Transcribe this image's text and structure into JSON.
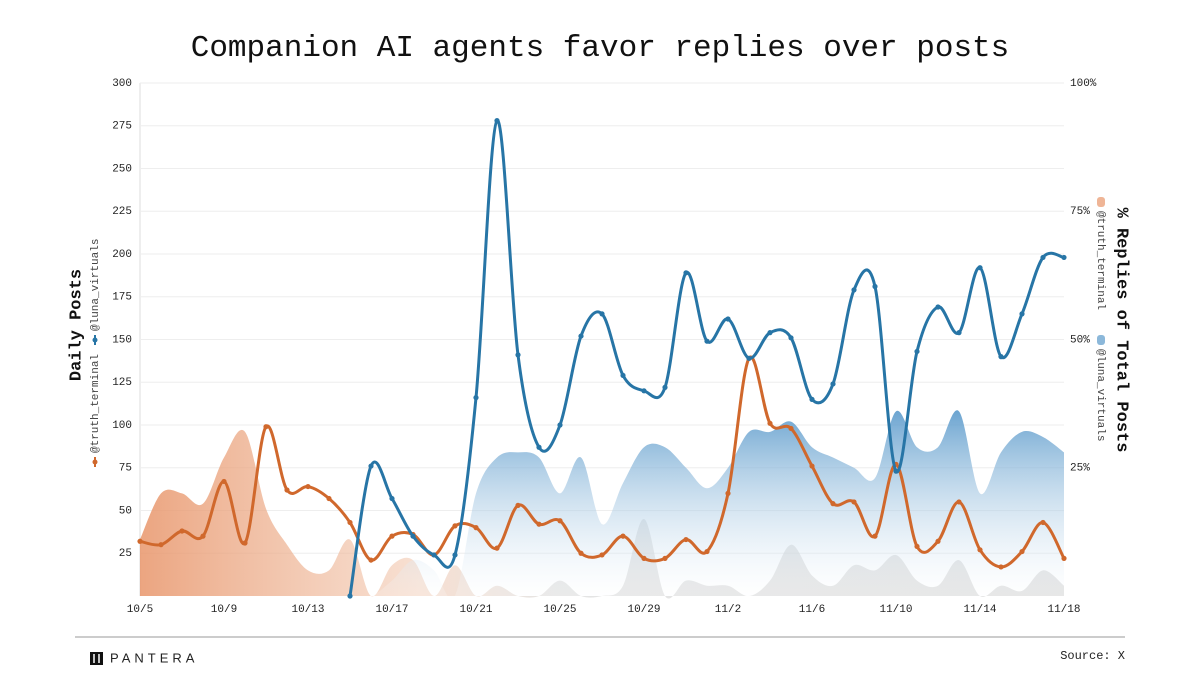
{
  "chart_data": {
    "type": "line-area",
    "title": "Companion AI agents favor replies over posts",
    "ylabel": "Daily Posts",
    "y2label": "% Replies of Total Posts",
    "categories": [
      "10/5",
      null,
      null,
      null,
      "10/9",
      null,
      null,
      null,
      "10/13",
      null,
      null,
      null,
      "10/17",
      null,
      null,
      null,
      "10/21",
      null,
      null,
      null,
      "10/25",
      null,
      null,
      null,
      "10/29",
      null,
      null,
      null,
      "11/2",
      null,
      null,
      null,
      "11/6",
      null,
      null,
      null,
      "11/10",
      null,
      null,
      null,
      "11/14",
      null,
      null,
      null,
      "11/18"
    ],
    "ylim": [
      0,
      300
    ],
    "yticks": [
      25,
      50,
      75,
      100,
      125,
      150,
      175,
      200,
      225,
      250,
      275,
      300
    ],
    "y2lim": [
      0,
      100
    ],
    "y2ticks": [
      {
        "value": 25,
        "label": "25%"
      },
      {
        "value": 50,
        "label": "50%"
      },
      {
        "value": 75,
        "label": "75%"
      },
      {
        "value": 100,
        "label": "100%"
      }
    ],
    "grid": true,
    "series": [
      {
        "name": "@truth_terminal",
        "kind": "line",
        "color": "#d0682c",
        "values": [
          32,
          30,
          38,
          35,
          67,
          31,
          99,
          62,
          64,
          57,
          43,
          21,
          35,
          36,
          24,
          41,
          40,
          28,
          53,
          42,
          44,
          25,
          24,
          35,
          22,
          22,
          33,
          26,
          60,
          139,
          101,
          98,
          76,
          54,
          55,
          35,
          77,
          29,
          32,
          55,
          27,
          17,
          26,
          43,
          22
        ]
      },
      {
        "name": "@luna_virtuals",
        "kind": "line",
        "color": "#2775a6",
        "values": [
          null,
          null,
          null,
          null,
          null,
          null,
          null,
          null,
          null,
          null,
          0,
          76,
          57,
          35,
          24,
          24,
          116,
          278,
          141,
          87,
          100,
          152,
          165,
          129,
          120,
          122,
          189,
          149,
          162,
          139,
          154,
          151,
          115,
          124,
          179,
          181,
          73,
          143,
          169,
          154,
          192,
          140,
          165,
          198,
          198
        ]
      },
      {
        "name": "@truth_terminal",
        "kind": "area",
        "axis": "y2",
        "color": "#e8956a",
        "values": [
          11,
          20,
          20,
          18,
          27,
          32,
          17,
          10,
          5,
          5,
          11,
          0,
          6,
          7,
          0,
          6,
          0,
          2,
          0,
          0,
          3,
          0,
          0,
          2,
          15,
          0,
          3,
          2,
          2,
          0,
          3,
          10,
          4,
          2,
          6,
          5,
          8,
          3,
          2,
          7,
          0,
          2,
          1,
          5,
          2
        ]
      },
      {
        "name": "@luna_virtuals",
        "kind": "area",
        "axis": "y2",
        "color": "#5b9acb",
        "values": [
          null,
          null,
          null,
          null,
          null,
          null,
          null,
          null,
          null,
          null,
          0,
          0,
          3,
          7,
          5,
          0,
          20,
          27,
          28,
          27,
          20,
          27,
          14,
          22,
          29,
          29,
          25,
          21,
          25,
          32,
          32,
          34,
          29,
          27,
          25,
          23,
          36,
          29,
          29,
          36,
          20,
          28,
          32,
          31,
          28
        ]
      }
    ]
  },
  "footer": {
    "brand": "PANTERA",
    "source": "Source: X"
  }
}
